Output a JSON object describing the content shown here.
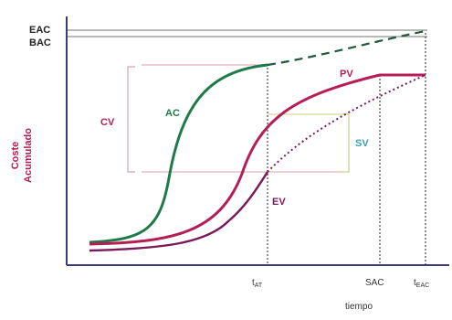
{
  "chart_data": {
    "type": "line",
    "title": "",
    "xlabel": "tiempo",
    "ylabel": [
      "Coste",
      "Acumulado"
    ],
    "y_markers": [
      "EAC",
      "BAC"
    ],
    "x_markers": [
      {
        "label": "t",
        "sub": "AT"
      },
      {
        "label": "SAC",
        "sub": ""
      },
      {
        "label": "t",
        "sub": "EAC"
      }
    ],
    "series": [
      {
        "name": "AC",
        "style": "solid",
        "color": "#1f7a4a"
      },
      {
        "name": "PV",
        "style": "solid",
        "color": "#b51d57"
      },
      {
        "name": "EV",
        "style": "solid",
        "color": "#7a1a5a"
      },
      {
        "name": "",
        "style": "dashed",
        "color": "#1f5a3a"
      },
      {
        "name": "",
        "style": "dotted",
        "color": "#7a1a5a"
      }
    ],
    "variances": [
      {
        "name": "CV",
        "color": "#b51d57"
      },
      {
        "name": "SV",
        "color": "#3aa0b0"
      }
    ]
  }
}
